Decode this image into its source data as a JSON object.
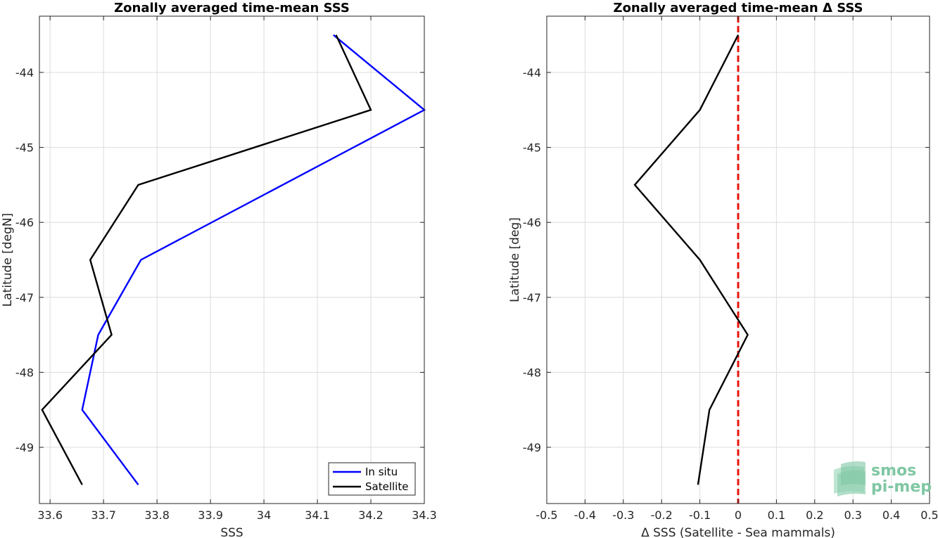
{
  "chart_data": [
    {
      "type": "line",
      "title": "Zonally averaged time-mean SSS",
      "xlabel": "SSS",
      "ylabel": "Latitude [degN]",
      "xlim": [
        33.58,
        34.3
      ],
      "ylim": [
        -49.75,
        -43.25
      ],
      "xticks": [
        33.6,
        33.7,
        33.8,
        33.9,
        34,
        34.1,
        34.2,
        34.3
      ],
      "xtick_labels": [
        "33.6",
        "33.7",
        "33.8",
        "33.9",
        "34",
        "34.1",
        "34.2",
        "34.3"
      ],
      "yticks": [
        -44,
        -45,
        -46,
        -47,
        -48,
        -49
      ],
      "ytick_labels": [
        "-44",
        "-45",
        "-46",
        "-47",
        "-48",
        "-49"
      ],
      "grid": true,
      "legend": "bottom-right",
      "series": [
        {
          "name": "In situ",
          "color": "#0000ff",
          "points": [
            [
              34.13,
              -43.5
            ],
            [
              34.3,
              -44.5
            ],
            [
              33.77,
              -46.5
            ],
            [
              33.69,
              -47.5
            ],
            [
              33.66,
              -48.5
            ],
            [
              33.765,
              -49.5
            ]
          ]
        },
        {
          "name": "Satellite",
          "color": "#000000",
          "points": [
            [
              34.135,
              -43.5
            ],
            [
              34.2,
              -44.5
            ],
            [
              33.765,
              -45.5
            ],
            [
              33.675,
              -46.5
            ],
            [
              33.715,
              -47.5
            ],
            [
              33.585,
              -48.5
            ],
            [
              33.66,
              -49.5
            ]
          ]
        }
      ]
    },
    {
      "type": "line",
      "title": "Zonally averaged time-mean Δ SSS",
      "xlabel": "Δ SSS (Satellite - Sea mammals)",
      "ylabel": "Latitude [deg]",
      "xlim": [
        -0.5,
        0.5
      ],
      "ylim": [
        -49.75,
        -43.25
      ],
      "xticks": [
        -0.5,
        -0.4,
        -0.3,
        -0.2,
        -0.1,
        0,
        0.1,
        0.2,
        0.3,
        0.4,
        0.5
      ],
      "xtick_labels": [
        "-0.5",
        "-0.4",
        "-0.3",
        "-0.2",
        "-0.1",
        "0",
        "0.1",
        "0.2",
        "0.3",
        "0.4",
        "0.5"
      ],
      "yticks": [
        -44,
        -45,
        -46,
        -47,
        -48,
        -49
      ],
      "ytick_labels": [
        "-44",
        "-45",
        "-46",
        "-47",
        "-48",
        "-49"
      ],
      "grid": true,
      "reference_line": {
        "x": 0,
        "color": "#e8150c",
        "style": "dashed"
      },
      "series": [
        {
          "color": "#000000",
          "points": [
            [
              0,
              -43.5
            ],
            [
              -0.1,
              -44.5
            ],
            [
              -0.27,
              -45.5
            ],
            [
              -0.1,
              -46.5
            ],
            [
              0.025,
              -47.5
            ],
            [
              -0.075,
              -48.5
            ],
            [
              -0.105,
              -49.5
            ]
          ]
        }
      ]
    }
  ],
  "logo": {
    "line1": "smos",
    "line2": "pi-mep",
    "color": "#7fc7a3"
  }
}
